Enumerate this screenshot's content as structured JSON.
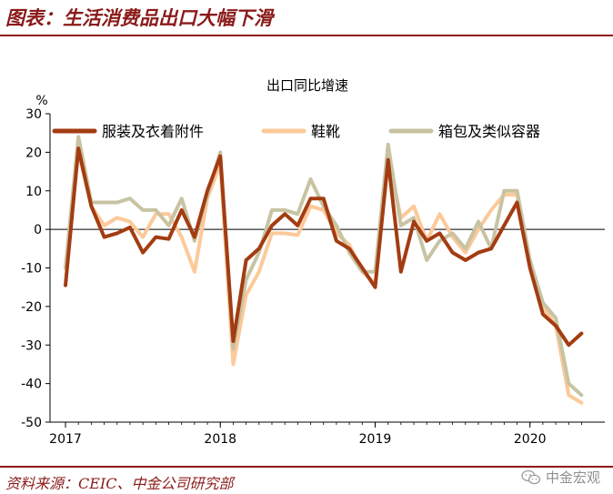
{
  "header": {
    "title": "图表：生活消费品出口大幅下滑"
  },
  "footer": {
    "source": "资料来源：CEIC、中金公司研究部",
    "watermark": "中金宏观"
  },
  "colors": {
    "accent": "#8b1a1a",
    "series": [
      "#a33c12",
      "#fcc99a",
      "#c8c3a2"
    ]
  },
  "chart_data": {
    "type": "line",
    "title": "出口同比增速",
    "ylabel": "%",
    "xlabel": "",
    "ylim": [
      -50,
      30
    ],
    "yticks": [
      30,
      20,
      10,
      0,
      -10,
      -20,
      -30,
      -40,
      -50
    ],
    "x_tick_labels": [
      {
        "label": "2017",
        "index": 0
      },
      {
        "label": "2018",
        "index": 12
      },
      {
        "label": "2019",
        "index": 24
      },
      {
        "label": "2020",
        "index": 36
      }
    ],
    "legend_position": "top",
    "x": [
      "2017-01",
      "2017-02",
      "2017-03",
      "2017-04",
      "2017-05",
      "2017-06",
      "2017-07",
      "2017-08",
      "2017-09",
      "2017-10",
      "2017-11",
      "2017-12",
      "2018-01",
      "2018-02",
      "2018-03",
      "2018-04",
      "2018-05",
      "2018-06",
      "2018-07",
      "2018-08",
      "2018-09",
      "2018-10",
      "2018-11",
      "2018-12",
      "2019-01",
      "2019-02",
      "2019-03",
      "2019-04",
      "2019-05",
      "2019-06",
      "2019-07",
      "2019-08",
      "2019-09",
      "2019-10",
      "2019-11",
      "2019-12",
      "2020-01",
      "2020-02",
      "2020-03",
      "2020-04",
      "2020-05"
    ],
    "series": [
      {
        "name": "服装及衣着附件",
        "values": [
          -14.5,
          21,
          6,
          -2,
          -1,
          0.5,
          -6,
          -2,
          -2.5,
          5,
          -2,
          10,
          19,
          -29,
          -8,
          -5,
          1,
          4,
          1,
          8,
          8,
          -3,
          -5,
          -10,
          -15,
          18,
          -11,
          2,
          -3,
          -1,
          -6,
          -8,
          -6,
          -5,
          1,
          7,
          -10,
          -22,
          -25,
          -30,
          -27
        ]
      },
      {
        "name": "鞋靴",
        "values": [
          -10,
          20,
          6,
          1,
          3,
          2,
          -2,
          4,
          4,
          -2,
          -11,
          8,
          17,
          -35,
          -17,
          -11,
          -1,
          -1,
          -1.5,
          6,
          5,
          -1,
          -4,
          -11,
          -14,
          19,
          3,
          6,
          -3,
          4,
          -2,
          -6,
          0,
          5,
          9,
          9,
          -8,
          -20,
          -25,
          -43,
          -45
        ]
      },
      {
        "name": "箱包及类似容器",
        "values": [
          -10,
          24,
          7,
          7,
          7,
          8,
          5,
          5,
          1,
          8,
          -3,
          9,
          20,
          -31,
          -13,
          -6,
          5,
          5,
          4,
          13,
          6,
          1,
          -6,
          -11,
          -11,
          22,
          1,
          3,
          -8,
          -3,
          -1,
          -5,
          2,
          -5,
          10,
          10,
          -8,
          -19,
          -23,
          -40,
          -43
        ]
      }
    ]
  }
}
